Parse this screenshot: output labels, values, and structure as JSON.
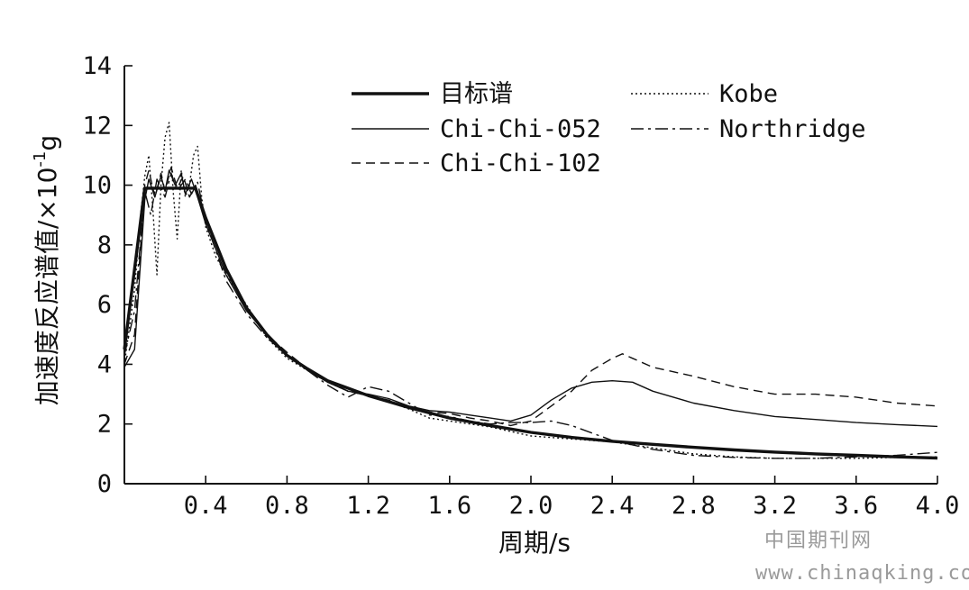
{
  "chart_data": {
    "type": "line",
    "xlabel": "周期/s",
    "ylabel": "加速度反应谱值/×10",
    "ylabel_exponent": "-1",
    "ylabel_unit": "g",
    "xlim": [
      0,
      4.0
    ],
    "ylim": [
      0,
      14
    ],
    "x_ticks": [
      0.4,
      0.8,
      1.2,
      1.6,
      2.0,
      2.4,
      2.8,
      3.2,
      3.6,
      4.0
    ],
    "x_tick_labels": [
      "0.4",
      "0.8",
      "1.2",
      "1.6",
      "2.0",
      "2.4",
      "2.8",
      "3.2",
      "3.6",
      "4.0"
    ],
    "y_ticks": [
      0,
      2,
      4,
      6,
      8,
      10,
      12,
      14
    ],
    "y_tick_labels": [
      "0",
      "2",
      "4",
      "6",
      "8",
      "10",
      "12",
      "14"
    ],
    "grid": false,
    "legend_position": "top",
    "series": [
      {
        "name": "目标谱",
        "style": "thick",
        "x": [
          0,
          0.1,
          0.35,
          0.4,
          0.5,
          0.6,
          0.7,
          0.8,
          0.9,
          1.0,
          1.2,
          1.4,
          1.6,
          1.8,
          2.0,
          2.2,
          2.4,
          2.6,
          2.8,
          3.0,
          3.2,
          3.4,
          3.6,
          3.8,
          4.0
        ],
        "y": [
          4.5,
          9.9,
          9.9,
          8.9,
          7.2,
          5.9,
          5.0,
          4.3,
          3.85,
          3.45,
          2.95,
          2.55,
          2.2,
          1.95,
          1.72,
          1.55,
          1.42,
          1.32,
          1.22,
          1.13,
          1.06,
          1.0,
          0.95,
          0.9,
          0.86
        ]
      },
      {
        "name": "Kobe",
        "style": "dotted",
        "x": [
          0,
          0.05,
          0.08,
          0.1,
          0.12,
          0.14,
          0.16,
          0.18,
          0.2,
          0.22,
          0.24,
          0.26,
          0.28,
          0.3,
          0.32,
          0.34,
          0.36,
          0.38,
          0.4,
          0.45,
          0.5,
          0.6,
          0.7,
          0.8,
          0.9,
          1.0,
          1.1,
          1.2,
          1.3,
          1.4,
          1.5,
          1.6,
          1.7,
          1.8,
          1.9,
          2.0,
          2.2,
          2.4,
          2.6,
          2.8,
          3.0,
          3.2,
          3.4,
          3.6,
          3.8,
          4.0
        ],
        "y": [
          4.0,
          6.5,
          9.0,
          10.3,
          11.0,
          9.2,
          7.0,
          10.0,
          11.6,
          12.1,
          9.8,
          8.2,
          10.5,
          9.6,
          10.0,
          11.0,
          11.3,
          9.6,
          8.6,
          7.6,
          7.0,
          6.0,
          4.9,
          4.2,
          3.8,
          3.4,
          3.1,
          2.95,
          2.75,
          2.5,
          2.2,
          2.1,
          2.0,
          1.9,
          1.75,
          1.6,
          1.5,
          1.4,
          1.2,
          1.0,
          0.9,
          0.85,
          0.85,
          0.85,
          0.88,
          0.9
        ]
      },
      {
        "name": "Chi-Chi-052",
        "style": "thin",
        "x": [
          0,
          0.05,
          0.1,
          0.12,
          0.15,
          0.18,
          0.2,
          0.22,
          0.25,
          0.28,
          0.3,
          0.33,
          0.36,
          0.4,
          0.5,
          0.6,
          0.7,
          0.8,
          0.9,
          1.0,
          1.1,
          1.2,
          1.3,
          1.4,
          1.5,
          1.6,
          1.7,
          1.8,
          1.9,
          2.0,
          2.1,
          2.2,
          2.3,
          2.4,
          2.5,
          2.6,
          2.8,
          3.0,
          3.2,
          3.4,
          3.6,
          3.8,
          4.0
        ],
        "y": [
          3.9,
          4.5,
          9.5,
          10.2,
          9.6,
          10.3,
          9.8,
          10.5,
          10.0,
          10.4,
          9.7,
          10.2,
          9.6,
          8.7,
          7.0,
          5.8,
          5.0,
          4.3,
          3.8,
          3.4,
          3.1,
          3.0,
          2.85,
          2.6,
          2.45,
          2.4,
          2.3,
          2.2,
          2.1,
          2.3,
          2.8,
          3.2,
          3.4,
          3.45,
          3.4,
          3.1,
          2.7,
          2.45,
          2.25,
          2.15,
          2.05,
          1.98,
          1.92
        ]
      },
      {
        "name": "Northridge",
        "style": "dashdot",
        "x": [
          0,
          0.05,
          0.1,
          0.13,
          0.16,
          0.2,
          0.23,
          0.26,
          0.3,
          0.33,
          0.36,
          0.4,
          0.5,
          0.6,
          0.7,
          0.8,
          0.9,
          1.0,
          1.1,
          1.2,
          1.3,
          1.4,
          1.5,
          1.6,
          1.7,
          1.8,
          1.9,
          2.0,
          2.1,
          2.2,
          2.3,
          2.4,
          2.6,
          2.8,
          3.0,
          3.2,
          3.4,
          3.6,
          3.8,
          4.0
        ],
        "y": [
          4.3,
          5.8,
          9.8,
          9.0,
          10.2,
          9.6,
          10.4,
          9.8,
          10.2,
          9.7,
          10.1,
          8.8,
          6.8,
          5.7,
          4.9,
          4.3,
          3.8,
          3.3,
          2.9,
          3.25,
          3.1,
          2.7,
          2.3,
          2.25,
          2.1,
          2.0,
          2.05,
          2.05,
          2.1,
          1.95,
          1.7,
          1.45,
          1.15,
          0.95,
          0.88,
          0.85,
          0.85,
          0.9,
          0.95,
          1.05
        ]
      },
      {
        "name": "Chi-Chi-102",
        "style": "dashed",
        "x": [
          0,
          0.05,
          0.1,
          0.12,
          0.15,
          0.18,
          0.2,
          0.23,
          0.26,
          0.29,
          0.32,
          0.35,
          0.4,
          0.5,
          0.6,
          0.7,
          0.8,
          0.9,
          1.0,
          1.1,
          1.2,
          1.3,
          1.4,
          1.5,
          1.6,
          1.7,
          1.8,
          1.9,
          2.0,
          2.1,
          2.2,
          2.3,
          2.4,
          2.45,
          2.5,
          2.6,
          2.7,
          2.8,
          3.0,
          3.2,
          3.4,
          3.6,
          3.8,
          4.0
        ],
        "y": [
          4.0,
          5.0,
          10.0,
          10.5,
          9.6,
          10.4,
          9.8,
          10.6,
          9.9,
          10.3,
          9.6,
          10.0,
          8.9,
          7.1,
          5.9,
          5.0,
          4.4,
          3.85,
          3.45,
          3.1,
          2.95,
          2.8,
          2.55,
          2.4,
          2.35,
          2.2,
          2.1,
          1.95,
          2.1,
          2.6,
          3.1,
          3.8,
          4.2,
          4.35,
          4.2,
          3.9,
          3.75,
          3.6,
          3.25,
          3.0,
          3.0,
          2.9,
          2.7,
          2.6
        ]
      }
    ]
  },
  "watermark": {
    "line1": "中国期刊网",
    "line2": "www.chinaqking.com"
  }
}
